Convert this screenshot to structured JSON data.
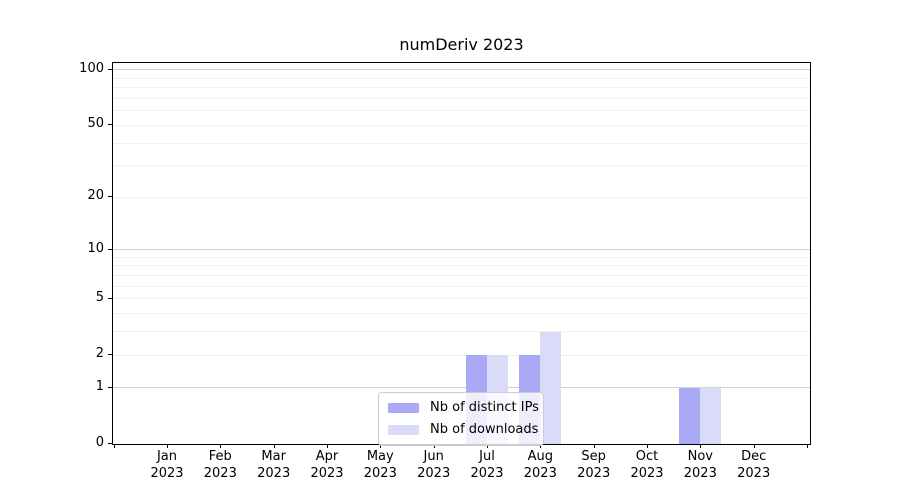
{
  "page": {
    "background": "#ffffff"
  },
  "chart_data": {
    "type": "bar",
    "title": "numDeriv 2023",
    "xlabel": "",
    "ylabel": "",
    "yscale": "log1p",
    "ylim": [
      0,
      109
    ],
    "yticks": [
      0,
      1,
      2,
      5,
      10,
      20,
      50,
      100
    ],
    "grid": {
      "major": [
        1,
        10,
        100
      ],
      "minor": [
        2,
        3,
        4,
        5,
        6,
        7,
        8,
        9,
        20,
        30,
        40,
        50,
        60,
        70,
        80,
        90
      ]
    },
    "categories": [
      {
        "month": "Jan",
        "year": "2023"
      },
      {
        "month": "Feb",
        "year": "2023"
      },
      {
        "month": "Mar",
        "year": "2023"
      },
      {
        "month": "Apr",
        "year": "2023"
      },
      {
        "month": "May",
        "year": "2023"
      },
      {
        "month": "Jun",
        "year": "2023"
      },
      {
        "month": "Jul",
        "year": "2023"
      },
      {
        "month": "Aug",
        "year": "2023"
      },
      {
        "month": "Sep",
        "year": "2023"
      },
      {
        "month": "Oct",
        "year": "2023"
      },
      {
        "month": "Nov",
        "year": "2023"
      },
      {
        "month": "Dec",
        "year": "2023"
      }
    ],
    "series": [
      {
        "name": "Nb of distinct IPs",
        "color": "#a9a9f5",
        "values": [
          0,
          0,
          0,
          0,
          0,
          0,
          2,
          2,
          0,
          0,
          1,
          0
        ]
      },
      {
        "name": "Nb of downloads",
        "color": "#dadaf9",
        "values": [
          0,
          0,
          0,
          0,
          0,
          0,
          2,
          3,
          0,
          0,
          1,
          0
        ]
      }
    ],
    "legend_position": "lower center",
    "grid_on": true
  },
  "colors": {
    "axis": "#000000",
    "grid_major": "#d2d2d2",
    "grid_minor": "#f0f0f0",
    "legend_border": "#cccccc",
    "text": "#000000"
  }
}
